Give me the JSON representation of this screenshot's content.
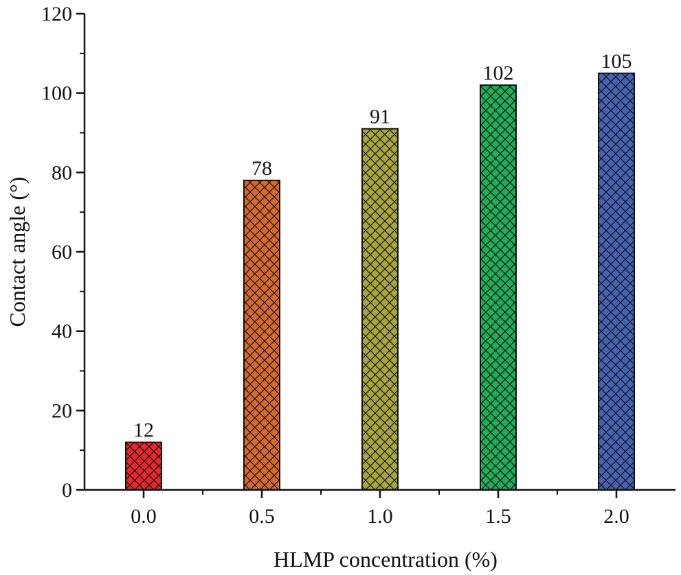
{
  "chart_data": {
    "type": "bar",
    "categories": [
      "0.0",
      "0.5",
      "1.0",
      "1.5",
      "2.0"
    ],
    "values": [
      12,
      78,
      91,
      102,
      105
    ],
    "data_labels": [
      "12",
      "78",
      "91",
      "102",
      "105"
    ],
    "bar_colors": [
      "#e8262b",
      "#d9692a",
      "#a8a83a",
      "#1fae5a",
      "#4663b3"
    ],
    "bar_pattern": "crosshatch",
    "title": "",
    "xlabel": "HLMP concentration (%)",
    "ylabel": "Contact angle (°)",
    "ylim": [
      0,
      120
    ],
    "yticks": [
      "0",
      "20",
      "40",
      "60",
      "80",
      "100",
      "120"
    ],
    "grid": false,
    "legend": "none"
  }
}
